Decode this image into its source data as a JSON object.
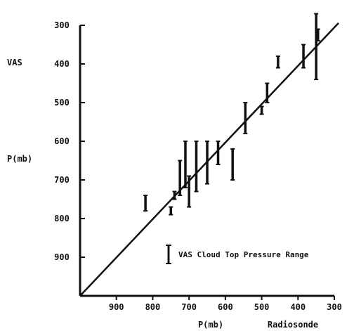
{
  "chart_data": {
    "type": "scatter",
    "xlabel": "P(mb)",
    "xlabel_secondary": "Radiosonde",
    "ylabel": "P(mb)",
    "ylabel_secondary": "VAS",
    "xlim": [
      1000,
      300
    ],
    "ylim": [
      1000,
      300
    ],
    "x_ticks": [
      900,
      800,
      700,
      600,
      500,
      400,
      300
    ],
    "y_ticks": [
      300,
      400,
      500,
      600,
      700,
      800,
      900
    ],
    "x_tick_labels": [
      "900",
      "800",
      "700",
      "600",
      "500",
      "400",
      "300"
    ],
    "y_tick_labels": [
      "300",
      "400",
      "500",
      "600",
      "700",
      "800",
      "900"
    ],
    "reference_line": {
      "from": [
        1000,
        1000
      ],
      "to": [
        300,
        305
      ]
    },
    "legend": {
      "label": "VAS Cloud Top Pressure Range",
      "placement": "bottom-right"
    },
    "series": [
      {
        "points": [
          {
            "x": 820,
            "low": 740,
            "high": 780
          },
          {
            "x": 750,
            "low": 770,
            "high": 790
          },
          {
            "x": 740,
            "low": 730,
            "high": 750
          },
          {
            "x": 725,
            "low": 650,
            "high": 740
          },
          {
            "x": 710,
            "low": 600,
            "high": 720
          },
          {
            "x": 700,
            "low": 690,
            "high": 770
          },
          {
            "x": 680,
            "low": 600,
            "high": 730
          },
          {
            "x": 650,
            "low": 600,
            "high": 710
          },
          {
            "x": 620,
            "low": 600,
            "high": 660
          },
          {
            "x": 580,
            "low": 620,
            "high": 700
          },
          {
            "x": 545,
            "low": 500,
            "high": 580
          },
          {
            "x": 500,
            "low": 510,
            "high": 530
          },
          {
            "x": 485,
            "low": 450,
            "high": 500
          },
          {
            "x": 455,
            "low": 380,
            "high": 410
          },
          {
            "x": 385,
            "low": 350,
            "high": 410
          },
          {
            "x": 350,
            "low": 270,
            "high": 440
          },
          {
            "x": 345,
            "low": 310,
            "high": 340
          }
        ]
      }
    ]
  }
}
